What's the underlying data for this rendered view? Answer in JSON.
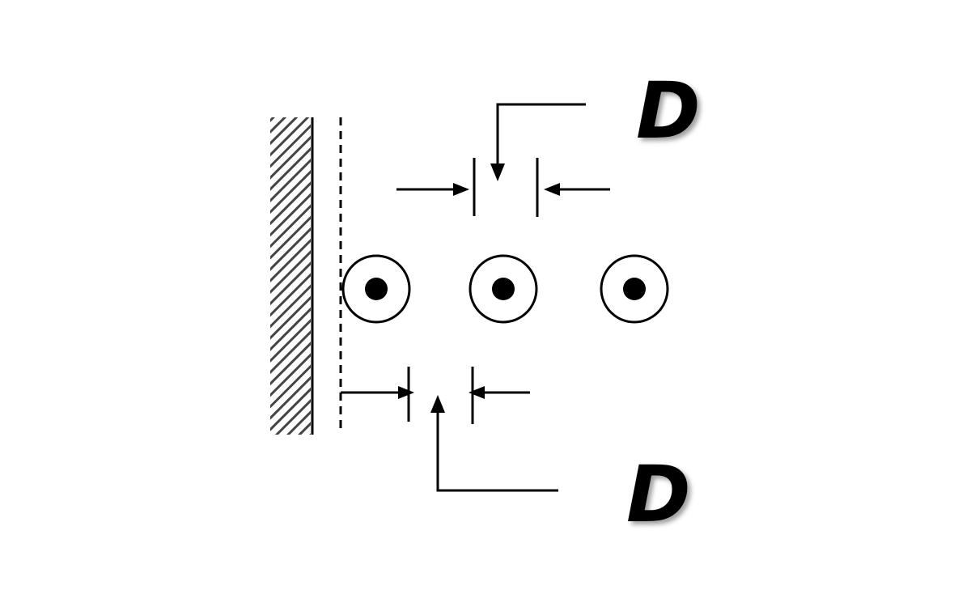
{
  "diagram": {
    "top_dimension_label": "D",
    "bottom_dimension_label": "D",
    "conductor_count": 3
  }
}
